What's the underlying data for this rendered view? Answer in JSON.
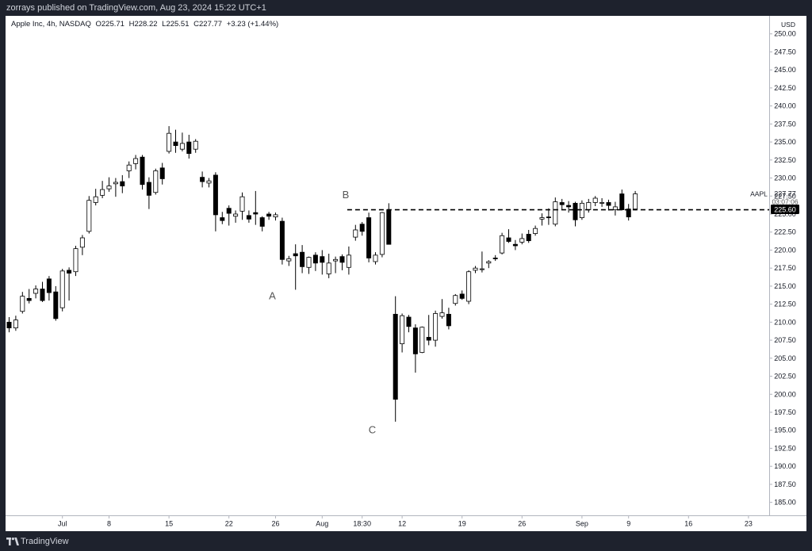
{
  "header": {
    "published": "zorrays published on TradingView.com, Aug 23, 2024 15:22 UTC+1"
  },
  "footer": {
    "brand": "TradingView"
  },
  "legend": {
    "symbol": "Apple Inc, 4h, NASDAQ",
    "open": "O225.71",
    "high": "H228.22",
    "low": "L225.51",
    "close": "C227.77",
    "change": "+3.23 (+1.44%)"
  },
  "colors": {
    "background": "#ffffff",
    "up_fill": "#ffffff",
    "down_fill": "#000000",
    "candle_border": "#000000",
    "price_tag": "#000000"
  },
  "chart_data": {
    "type": "candlestick",
    "timeframe": "4h",
    "currency": "USD",
    "ylim": [
      183.2,
      252.5
    ],
    "y_ticks": [
      "250.00",
      "247.50",
      "245.00",
      "242.50",
      "240.00",
      "237.50",
      "235.00",
      "232.50",
      "230.00",
      "227.50",
      "225.00",
      "222.50",
      "220.00",
      "217.50",
      "215.00",
      "212.50",
      "210.00",
      "207.50",
      "205.00",
      "202.50",
      "200.00",
      "197.50",
      "195.00",
      "192.50",
      "190.00",
      "187.50",
      "185.00"
    ],
    "x_ticks": [
      {
        "label": "Jul",
        "i": 8
      },
      {
        "label": "8",
        "i": 15
      },
      {
        "label": "15",
        "i": 24
      },
      {
        "label": "22",
        "i": 33
      },
      {
        "label": "26",
        "i": 40
      },
      {
        "label": "Aug",
        "i": 47
      },
      {
        "label": "18:30",
        "i": 53
      },
      {
        "label": "12",
        "i": 59
      },
      {
        "label": "19",
        "i": 68
      },
      {
        "label": "26",
        "i": 77
      },
      {
        "label": "Sep",
        "i": 86
      },
      {
        "label": "9",
        "i": 93
      },
      {
        "label": "16",
        "i": 102
      },
      {
        "label": "23",
        "i": 111
      }
    ],
    "candles": [
      [
        210.0,
        210.7,
        208.6,
        209.2
      ],
      [
        209.2,
        210.9,
        208.8,
        210.3
      ],
      [
        211.5,
        214.2,
        211.2,
        213.6
      ],
      [
        213.3,
        214.6,
        212.6,
        213.0
      ],
      [
        214.0,
        215.1,
        213.3,
        214.6
      ],
      [
        214.6,
        215.6,
        212.8,
        213.0
      ],
      [
        216.0,
        216.4,
        213.0,
        214.1
      ],
      [
        214.2,
        215.0,
        210.2,
        210.5
      ],
      [
        212.0,
        217.4,
        211.5,
        217.1
      ],
      [
        217.2,
        217.6,
        213.0,
        216.8
      ],
      [
        217.0,
        220.6,
        216.4,
        220.2
      ],
      [
        220.4,
        222.1,
        219.3,
        221.7
      ],
      [
        222.6,
        227.5,
        222.3,
        226.9
      ],
      [
        226.6,
        228.5,
        226.2,
        227.4
      ],
      [
        227.6,
        229.6,
        227.2,
        228.4
      ],
      [
        228.5,
        230.1,
        228.1,
        228.9
      ],
      [
        229.2,
        230.0,
        227.4,
        229.4
      ],
      [
        229.5,
        230.4,
        227.9,
        228.9
      ],
      [
        231.0,
        232.3,
        230.0,
        231.8
      ],
      [
        232.0,
        233.2,
        231.2,
        232.7
      ],
      [
        232.9,
        233.2,
        228.4,
        229.1
      ],
      [
        229.4,
        230.1,
        225.7,
        227.6
      ],
      [
        228.0,
        231.3,
        227.7,
        231.0
      ],
      [
        231.4,
        232.1,
        229.1,
        229.9
      ],
      [
        233.7,
        237.2,
        233.4,
        236.2
      ],
      [
        235.0,
        236.7,
        233.5,
        234.5
      ],
      [
        234.0,
        236.3,
        233.7,
        234.8
      ],
      [
        235.0,
        236.0,
        232.7,
        233.4
      ],
      [
        234.0,
        235.4,
        233.5,
        235.1
      ],
      [
        230.1,
        230.9,
        228.7,
        229.5
      ],
      [
        229.3,
        230.0,
        228.7,
        229.6
      ],
      [
        230.4,
        230.8,
        222.6,
        224.9
      ],
      [
        224.5,
        225.3,
        223.6,
        224.1
      ],
      [
        225.8,
        226.2,
        223.4,
        225.1
      ],
      [
        224.7,
        225.5,
        223.8,
        225.0
      ],
      [
        225.4,
        228.0,
        224.2,
        227.4
      ],
      [
        224.8,
        225.5,
        223.8,
        224.3
      ],
      [
        225.2,
        228.2,
        223.5,
        225.0
      ],
      [
        224.5,
        224.7,
        222.6,
        223.3
      ],
      [
        225.0,
        225.3,
        224.2,
        224.7
      ],
      [
        224.6,
        225.2,
        224.1,
        224.9
      ],
      [
        224.0,
        224.5,
        218.0,
        218.7
      ],
      [
        218.5,
        219.2,
        217.8,
        218.8
      ],
      [
        219.5,
        220.8,
        214.5,
        219.2
      ],
      [
        219.7,
        220.7,
        216.8,
        217.7
      ],
      [
        217.6,
        219.1,
        216.7,
        219.0
      ],
      [
        219.3,
        219.7,
        217.1,
        218.2
      ],
      [
        219.1,
        220.0,
        216.6,
        218.3
      ],
      [
        216.7,
        219.5,
        216.1,
        218.2
      ],
      [
        218.5,
        219.1,
        216.8,
        218.7
      ],
      [
        219.1,
        219.4,
        217.2,
        218.3
      ],
      [
        217.6,
        220.5,
        216.6,
        219.3
      ],
      [
        221.8,
        223.5,
        221.3,
        222.8
      ],
      [
        223.6,
        223.9,
        222.0,
        222.6
      ],
      [
        224.5,
        225.2,
        218.3,
        218.9
      ],
      [
        218.4,
        219.7,
        218.0,
        219.3
      ],
      [
        219.4,
        225.3,
        219.0,
        225.2
      ],
      [
        225.6,
        226.5,
        220.8,
        220.8
      ],
      [
        211.1,
        213.6,
        196.2,
        199.3
      ],
      [
        207.0,
        211.2,
        205.8,
        210.9
      ],
      [
        210.7,
        211.0,
        208.6,
        209.4
      ],
      [
        209.2,
        209.7,
        203.0,
        205.6
      ],
      [
        205.8,
        209.4,
        205.7,
        209.3
      ],
      [
        207.9,
        211.0,
        206.8,
        207.5
      ],
      [
        207.5,
        211.6,
        206.6,
        211.2
      ],
      [
        210.8,
        213.2,
        210.5,
        211.3
      ],
      [
        211.1,
        212.0,
        209.0,
        209.5
      ],
      [
        212.6,
        213.9,
        212.3,
        213.7
      ],
      [
        213.9,
        214.4,
        213.1,
        213.3
      ],
      [
        212.9,
        217.2,
        212.5,
        217.0
      ],
      [
        217.2,
        217.8,
        216.8,
        217.5
      ],
      [
        217.3,
        219.8,
        216.9,
        217.4
      ],
      [
        218.2,
        218.6,
        217.5,
        218.4
      ],
      [
        218.9,
        219.3,
        218.5,
        218.8
      ],
      [
        219.6,
        222.4,
        219.4,
        222.0
      ],
      [
        221.7,
        222.9,
        221.0,
        221.2
      ],
      [
        220.8,
        221.4,
        220.0,
        220.6
      ],
      [
        221.1,
        222.3,
        220.8,
        221.6
      ],
      [
        222.2,
        222.8,
        221.0,
        221.3
      ],
      [
        222.3,
        223.4,
        222.0,
        223.0
      ],
      [
        224.3,
        225.1,
        223.4,
        224.5
      ],
      [
        224.6,
        225.8,
        223.5,
        224.5
      ],
      [
        223.6,
        227.3,
        223.3,
        226.7
      ],
      [
        226.6,
        227.1,
        225.6,
        226.3
      ],
      [
        226.2,
        226.8,
        225.2,
        226.0
      ],
      [
        226.5,
        226.7,
        223.3,
        224.2
      ],
      [
        224.5,
        226.9,
        224.2,
        226.5
      ],
      [
        225.6,
        227.1,
        225.2,
        226.6
      ],
      [
        226.6,
        227.5,
        226.1,
        227.2
      ],
      [
        226.5,
        227.2,
        226.0,
        226.6
      ],
      [
        226.6,
        227.0,
        225.5,
        226.2
      ],
      [
        225.6,
        226.7,
        224.8,
        226.0
      ],
      [
        227.8,
        228.4,
        225.5,
        225.6
      ],
      [
        225.7,
        226.4,
        224.1,
        224.6
      ],
      [
        225.7,
        228.2,
        225.5,
        227.8
      ]
    ],
    "annotations": [
      {
        "label": "A",
        "i": 40,
        "price": 213.2
      },
      {
        "label": "B",
        "i": 51,
        "price": 227.2
      },
      {
        "label": "C",
        "i": 55,
        "price": 194.6
      }
    ],
    "horizontal_line": {
      "price": 225.6,
      "style": "dashed",
      "from_i": 51
    },
    "last_price": {
      "symbol": "AAPL",
      "close": "227.77",
      "countdown": "03:07:06",
      "price": "225.60",
      "level": 225.6
    }
  }
}
